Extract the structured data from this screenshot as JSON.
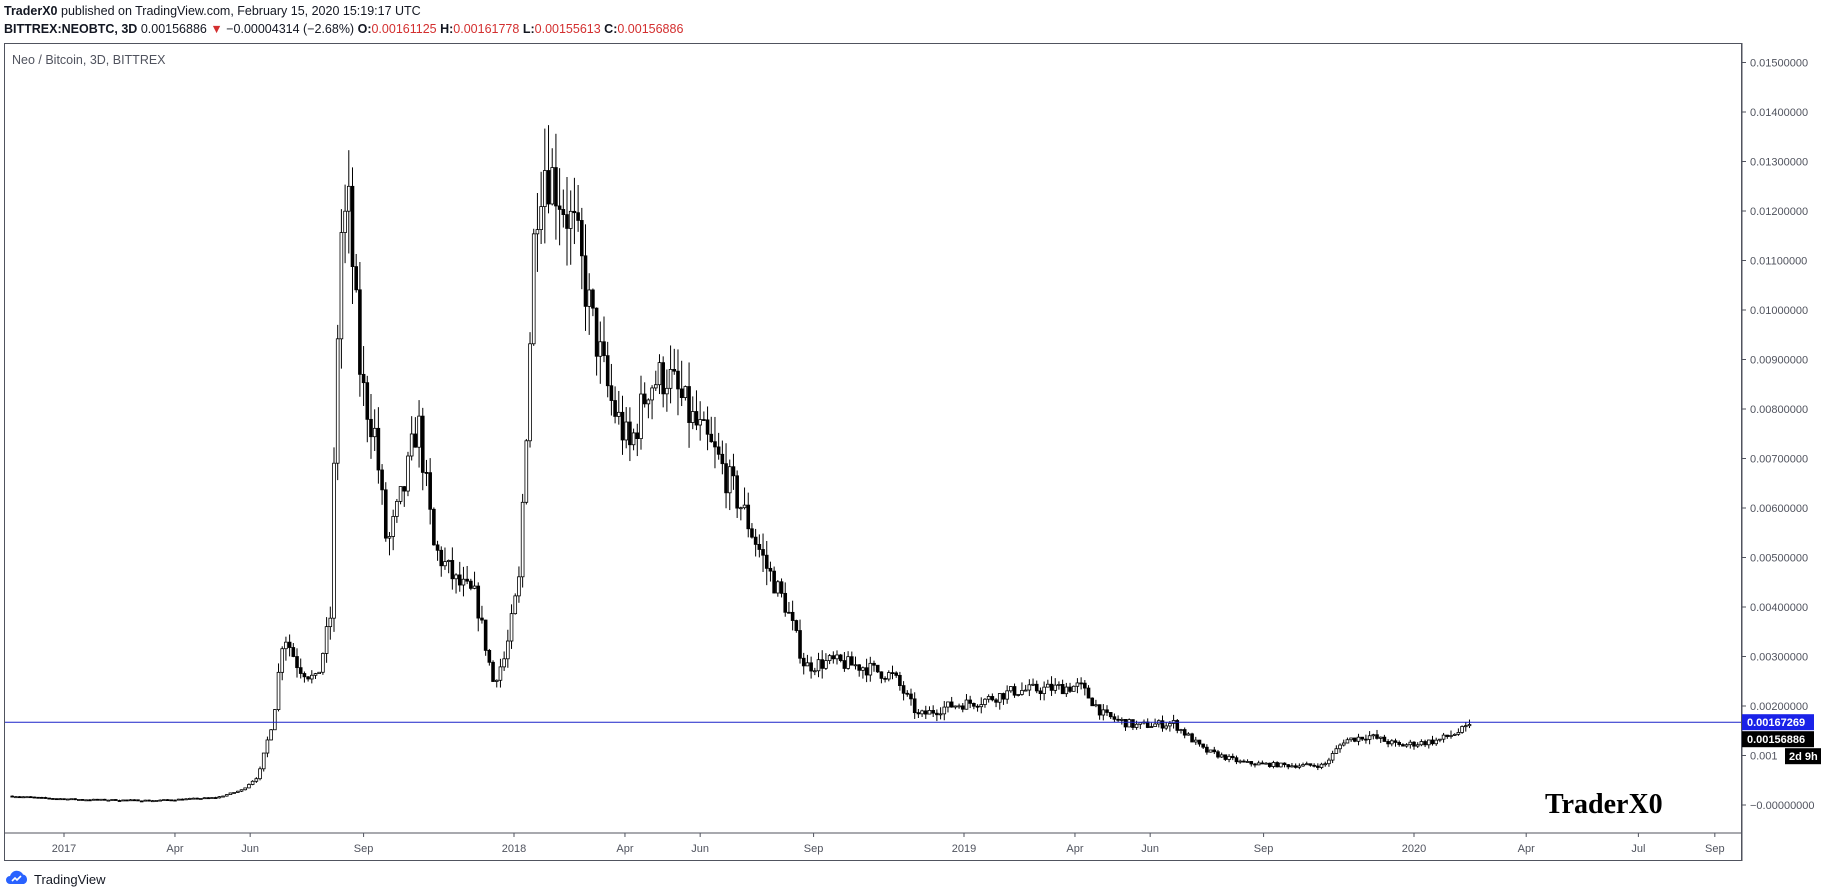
{
  "header": {
    "author": "TraderX0",
    "published_text": "published on TradingView.com, February 15, 2020 15:19:17 UTC",
    "symbol": "BITTREX:NEOBTC, 3D",
    "last_price": "0.00156886",
    "change_arrow": "▼",
    "change": "−0.00004314 (−2.68%)",
    "open_label": "O:",
    "open": "0.00161125",
    "high_label": "H:",
    "high": "0.00161778",
    "low_label": "L:",
    "low": "0.00155613",
    "close_label": "C:",
    "close": "0.00156886"
  },
  "footer": {
    "brand": "TradingView"
  },
  "colors": {
    "candle": "#000000",
    "hline": "#1a22c9",
    "hline_label_bg": "#1a22e8",
    "price_label_bg": "#000000",
    "axis_text": "#50535e",
    "down": "#d32f2f"
  },
  "chart_data": {
    "type": "candlestick",
    "title": "Neo / Bitcoin, 3D, BITTREX",
    "watermark": "TraderX0",
    "x_ticks": [
      "2017",
      "Apr",
      "Jun",
      "Sep",
      "2018",
      "Apr",
      "Jun",
      "Sep",
      "2019",
      "Apr",
      "Jun",
      "Sep",
      "2020",
      "Apr",
      "Jul",
      "Sep"
    ],
    "y_ticks": [
      "0.01500000",
      "0.01400000",
      "0.01300000",
      "0.01200000",
      "0.01100000",
      "0.01000000",
      "0.00900000",
      "0.00800000",
      "0.00700000",
      "0.00600000",
      "0.00500000",
      "0.00400000",
      "0.00300000",
      "0.00200000",
      "0.001",
      "−0.00000000"
    ],
    "ylim": [
      -0.0006,
      0.0154
    ],
    "horizontal_line": 0.00167269,
    "horizontal_line_label": "0.00167269",
    "last_price_label": "0.00156886",
    "countdown_label": "2d 9h",
    "grid": false,
    "close_series_approx": [
      [
        "2016-11-20",
        0.00018
      ],
      [
        "2016-12-15",
        0.00014
      ],
      [
        "2017-01-15",
        0.00011
      ],
      [
        "2017-02-15",
        0.0001
      ],
      [
        "2017-03-15",
        9e-05
      ],
      [
        "2017-04-10",
        0.00012
      ],
      [
        "2017-05-05",
        0.00015
      ],
      [
        "2017-05-25",
        0.0003
      ],
      [
        "2017-06-08",
        0.0006
      ],
      [
        "2017-06-20",
        0.0018
      ],
      [
        "2017-06-28",
        0.0035
      ],
      [
        "2017-07-10",
        0.0028
      ],
      [
        "2017-07-25",
        0.0025
      ],
      [
        "2017-08-05",
        0.0038
      ],
      [
        "2017-08-13",
        0.0115
      ],
      [
        "2017-08-20",
        0.012
      ],
      [
        "2017-08-30",
        0.0085
      ],
      [
        "2017-09-10",
        0.0075
      ],
      [
        "2017-09-20",
        0.0052
      ],
      [
        "2017-10-05",
        0.0065
      ],
      [
        "2017-10-15",
        0.0078
      ],
      [
        "2017-10-28",
        0.0052
      ],
      [
        "2017-11-15",
        0.0045
      ],
      [
        "2017-12-01",
        0.0042
      ],
      [
        "2017-12-15",
        0.0025
      ],
      [
        "2017-12-25",
        0.003
      ],
      [
        "2018-01-05",
        0.0045
      ],
      [
        "2018-01-12",
        0.0082
      ],
      [
        "2018-01-18",
        0.012
      ],
      [
        "2018-01-25",
        0.013
      ],
      [
        "2018-02-05",
        0.0125
      ],
      [
        "2018-02-20",
        0.0115
      ],
      [
        "2018-03-05",
        0.0098
      ],
      [
        "2018-03-20",
        0.0082
      ],
      [
        "2018-04-05",
        0.0072
      ],
      [
        "2018-04-20",
        0.0085
      ],
      [
        "2018-05-05",
        0.0087
      ],
      [
        "2018-05-25",
        0.0078
      ],
      [
        "2018-06-15",
        0.007
      ],
      [
        "2018-07-05",
        0.006
      ],
      [
        "2018-07-25",
        0.0048
      ],
      [
        "2018-08-10",
        0.004
      ],
      [
        "2018-08-25",
        0.0028
      ],
      [
        "2018-09-15",
        0.0029
      ],
      [
        "2018-10-10",
        0.0028
      ],
      [
        "2018-11-05",
        0.0026
      ],
      [
        "2018-11-25",
        0.0018
      ],
      [
        "2018-12-20",
        0.002
      ],
      [
        "2019-01-15",
        0.0021
      ],
      [
        "2019-02-10",
        0.0023
      ],
      [
        "2019-03-10",
        0.00235
      ],
      [
        "2019-04-05",
        0.0024
      ],
      [
        "2019-04-25",
        0.0018
      ],
      [
        "2019-05-20",
        0.0016
      ],
      [
        "2019-06-20",
        0.00165
      ],
      [
        "2019-07-15",
        0.0011
      ],
      [
        "2019-08-15",
        0.00085
      ],
      [
        "2019-09-20",
        0.0008
      ],
      [
        "2019-10-20",
        0.0008
      ],
      [
        "2019-11-05",
        0.0013
      ],
      [
        "2019-11-25",
        0.0014
      ],
      [
        "2019-12-20",
        0.0012
      ],
      [
        "2020-01-20",
        0.0013
      ],
      [
        "2020-02-15",
        0.00157
      ]
    ]
  }
}
